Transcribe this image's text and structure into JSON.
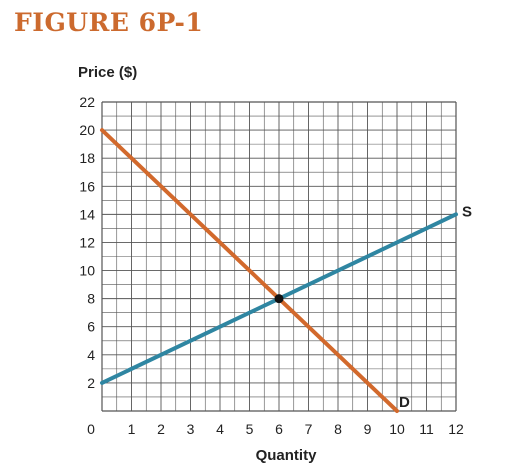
{
  "figure_title": "FIGURE 6P-1",
  "colors": {
    "title": "#cc6a2e",
    "demand": "#d2692c",
    "supply": "#2f86a2",
    "grid": "#555555",
    "equilibrium": "#111111"
  },
  "chart_data": {
    "type": "line",
    "title": "",
    "ylabel": "Price ($)",
    "xlabel": "Quantity",
    "xlim": [
      0,
      12
    ],
    "ylim": [
      0,
      22
    ],
    "grid": true,
    "xticks": [
      "0",
      "1",
      "2",
      "3",
      "4",
      "5",
      "6",
      "7",
      "8",
      "9",
      "10",
      "11",
      "12"
    ],
    "yticks": [
      "2",
      "4",
      "6",
      "8",
      "10",
      "12",
      "14",
      "16",
      "18",
      "20",
      "22"
    ],
    "series": [
      {
        "name": "D",
        "x": [
          0,
          10
        ],
        "y": [
          20,
          0
        ]
      },
      {
        "name": "S",
        "x": [
          0,
          12
        ],
        "y": [
          2,
          14
        ]
      }
    ],
    "equilibrium": {
      "x": 6,
      "y": 8
    }
  }
}
